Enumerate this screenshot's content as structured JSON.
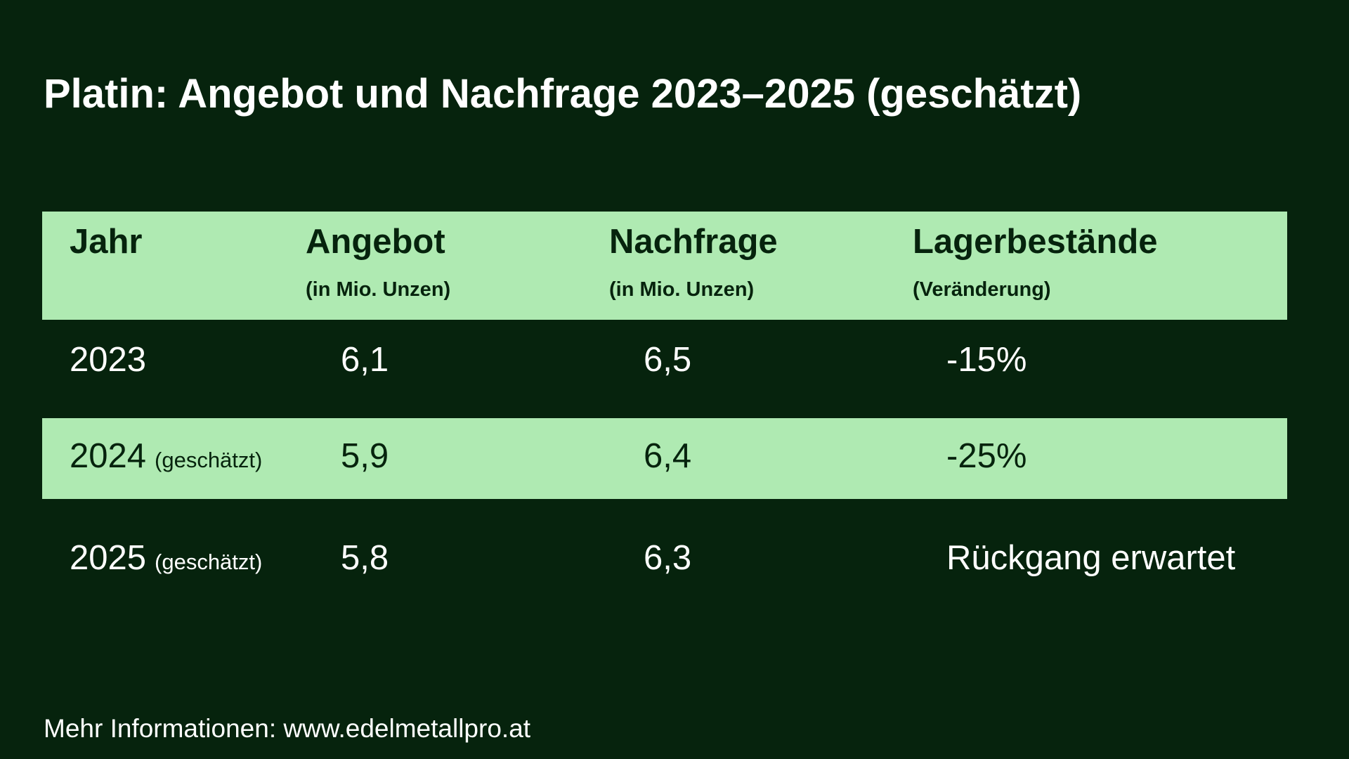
{
  "title": "Platin: Angebot und Nachfrage 2023–2025 (geschätzt)",
  "table": {
    "header": [
      {
        "label": "Jahr"
      },
      {
        "label": "Angebot",
        "sub": "(in Mio. Unzen)"
      },
      {
        "label": "Nachfrage",
        "sub": "(in Mio. Unzen)"
      },
      {
        "label": "Lagerbestände",
        "sub": "(Veränderung)"
      }
    ],
    "rows": [
      {
        "year": "2023",
        "supply": "6,1",
        "demand": "6,5",
        "stock": "-15%"
      },
      {
        "year": "2024",
        "note": "(geschätzt)",
        "supply": "5,9",
        "demand": "6,4",
        "stock": "-25%"
      },
      {
        "year": "2025",
        "note": "(geschätzt)",
        "supply": "5,8",
        "demand": "6,3",
        "stock": "Rückgang erwartet"
      }
    ]
  },
  "footer": "Mehr Informationen: www.edelmetallpro.at"
}
